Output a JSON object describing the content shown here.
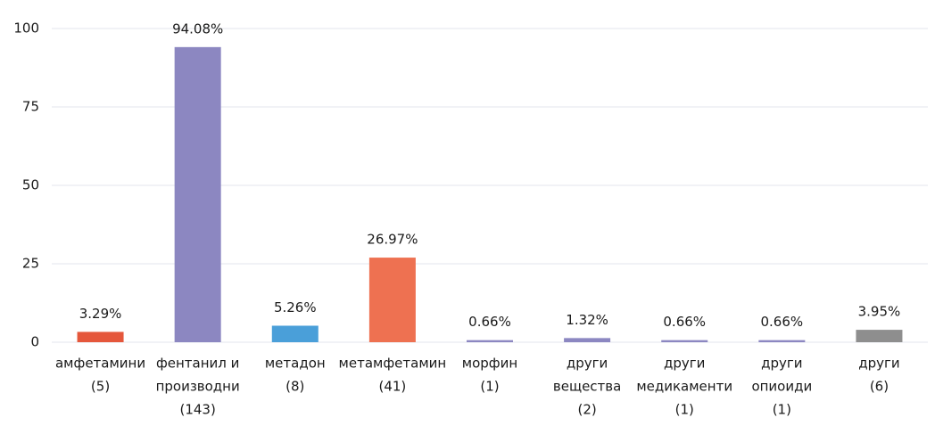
{
  "chart_data": {
    "type": "bar",
    "categories": [
      [
        "амфетамини",
        "(5)"
      ],
      [
        "фентанил и",
        "производни",
        "(143)"
      ],
      [
        "метадон",
        "(8)"
      ],
      [
        "метамфетамин",
        "(41)"
      ],
      [
        "морфин",
        "(1)"
      ],
      [
        "други",
        "вещества",
        "(2)"
      ],
      [
        "други",
        "медикаменти",
        "(1)"
      ],
      [
        "други",
        "опиоиди",
        "(1)"
      ],
      [
        "други",
        "(6)"
      ]
    ],
    "values": [
      3.29,
      94.08,
      5.26,
      26.97,
      0.66,
      1.32,
      0.66,
      0.66,
      3.95
    ],
    "value_labels": [
      "3.29%",
      "94.08%",
      "5.26%",
      "26.97%",
      "0.66%",
      "1.32%",
      "0.66%",
      "0.66%",
      "3.95%"
    ],
    "colors": [
      "#e5573b",
      "#8c87c1",
      "#4a9fd9",
      "#ee7151",
      "#8c87c1",
      "#8c87c1",
      "#8c87c1",
      "#8c87c1",
      "#8e8e8e"
    ],
    "ylim": [
      0,
      100
    ],
    "yticks": [
      0,
      25,
      50,
      75,
      100
    ],
    "grid": true
  }
}
